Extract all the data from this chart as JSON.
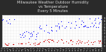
{
  "title": "Milwaukee Weather Outdoor Humidity\nvs Temperature\nEvery 5 Minutes",
  "title_fontsize": 3.8,
  "background_color": "#2a2a2a",
  "plot_bg_color": "#ffffff",
  "blue_color": "#0000ff",
  "red_color": "#cc0000",
  "grid_color": "#aaaaaa",
  "ytick_labels": [
    "0",
    "1.",
    "2.",
    "3.",
    "4.",
    "5.",
    "6.",
    "7.",
    "8.",
    "9."
  ],
  "ytick_values": [
    0,
    10,
    20,
    30,
    40,
    50,
    60,
    70,
    80,
    90
  ],
  "ylim": [
    -5,
    100
  ],
  "num_points": 300,
  "seed": 7,
  "title_color": "#dddddd"
}
